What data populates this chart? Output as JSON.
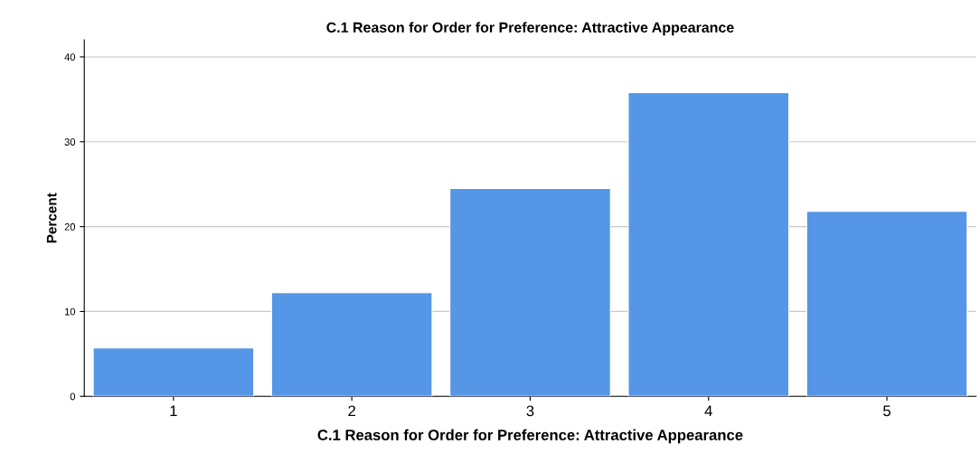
{
  "chart_data": {
    "type": "bar",
    "title": "C.1 Reason for Order for Preference: Attractive Appearance",
    "xlabel": "C.1 Reason for Order for Preference: Attractive Appearance",
    "ylabel": "Percent",
    "categories": [
      "1",
      "2",
      "3",
      "4",
      "5"
    ],
    "values": [
      5.7,
      12.2,
      24.5,
      35.8,
      21.8
    ],
    "color": "#5596e6",
    "ylim": [
      0,
      42
    ],
    "yticks": [
      0,
      10,
      20,
      30,
      40
    ],
    "grid": "y"
  }
}
